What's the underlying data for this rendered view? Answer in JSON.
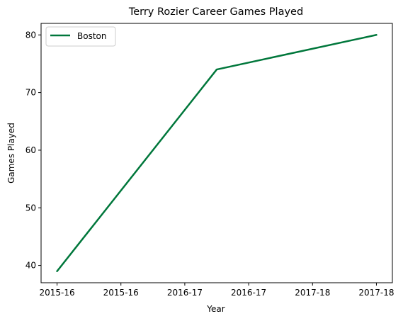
{
  "chart_data": {
    "type": "line",
    "title": "Terry Rozier Career Games Played",
    "xlabel": "Year",
    "ylabel": "Games Played",
    "x_tick_labels": [
      "2015-16",
      "2015-16",
      "2016-17",
      "2016-17",
      "2017-18",
      "2017-18"
    ],
    "x_range": [
      -0.1,
      2.1
    ],
    "ylim": [
      37,
      82
    ],
    "y_ticks": [
      40,
      50,
      60,
      70,
      80
    ],
    "grid": false,
    "legend_position": "upper-left",
    "series": [
      {
        "name": "Boston",
        "color": "#00773b",
        "x": [
          0,
          1,
          2
        ],
        "y": [
          39,
          74,
          80
        ]
      }
    ]
  }
}
